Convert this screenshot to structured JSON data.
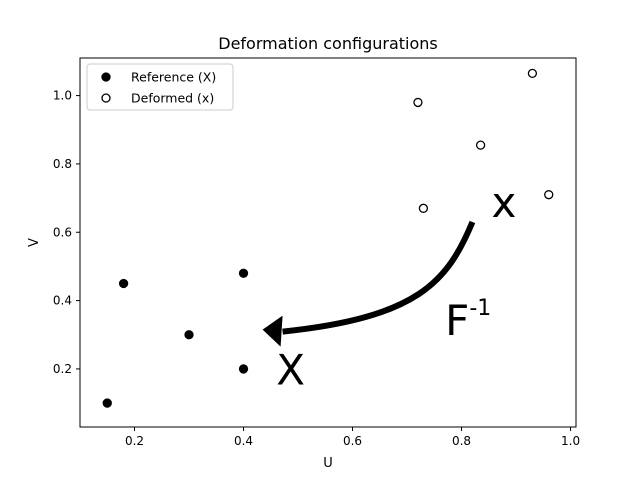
{
  "chart_data": {
    "type": "scatter",
    "title": "Deformation configurations",
    "xlabel": "U",
    "ylabel": "V",
    "xlim": [
      0.1,
      1.01
    ],
    "ylim": [
      0.03,
      1.11
    ],
    "xticks": [
      {
        "value": 0.2,
        "label": "0.2"
      },
      {
        "value": 0.4,
        "label": "0.4"
      },
      {
        "value": 0.6,
        "label": "0.6"
      },
      {
        "value": 0.8,
        "label": "0.8"
      },
      {
        "value": 1.0,
        "label": "1.0"
      }
    ],
    "yticks": [
      {
        "value": 0.2,
        "label": "0.2"
      },
      {
        "value": 0.4,
        "label": "0.4"
      },
      {
        "value": 0.6,
        "label": "0.6"
      },
      {
        "value": 0.8,
        "label": "0.8"
      },
      {
        "value": 1.0,
        "label": "1.0"
      }
    ],
    "grid": false,
    "legend_position": "top-left",
    "series": [
      {
        "name": "Reference (X)",
        "marker": "filled-circle",
        "color": "#000000",
        "points": [
          {
            "x": 0.15,
            "y": 0.1
          },
          {
            "x": 0.18,
            "y": 0.45
          },
          {
            "x": 0.3,
            "y": 0.3
          },
          {
            "x": 0.4,
            "y": 0.2
          },
          {
            "x": 0.4,
            "y": 0.48
          }
        ]
      },
      {
        "name": "Deformed (x)",
        "marker": "open-circle",
        "color": "#000000",
        "points": [
          {
            "x": 0.72,
            "y": 0.98
          },
          {
            "x": 0.73,
            "y": 0.67
          },
          {
            "x": 0.835,
            "y": 0.855
          },
          {
            "x": 0.93,
            "y": 1.065
          },
          {
            "x": 0.96,
            "y": 0.71
          }
        ]
      }
    ],
    "annotations": {
      "deformed_label": {
        "text": "x",
        "x": 0.855,
        "y": 0.645
      },
      "reference_label": {
        "text": "X",
        "x": 0.46,
        "y": 0.155
      },
      "mapping_label": {
        "base": "F",
        "superscript": "-1",
        "x": 0.77,
        "y": 0.3
      },
      "arrow": {
        "from": {
          "x": 0.82,
          "y": 0.63
        },
        "to": {
          "x": 0.435,
          "y": 0.315
        }
      }
    }
  }
}
